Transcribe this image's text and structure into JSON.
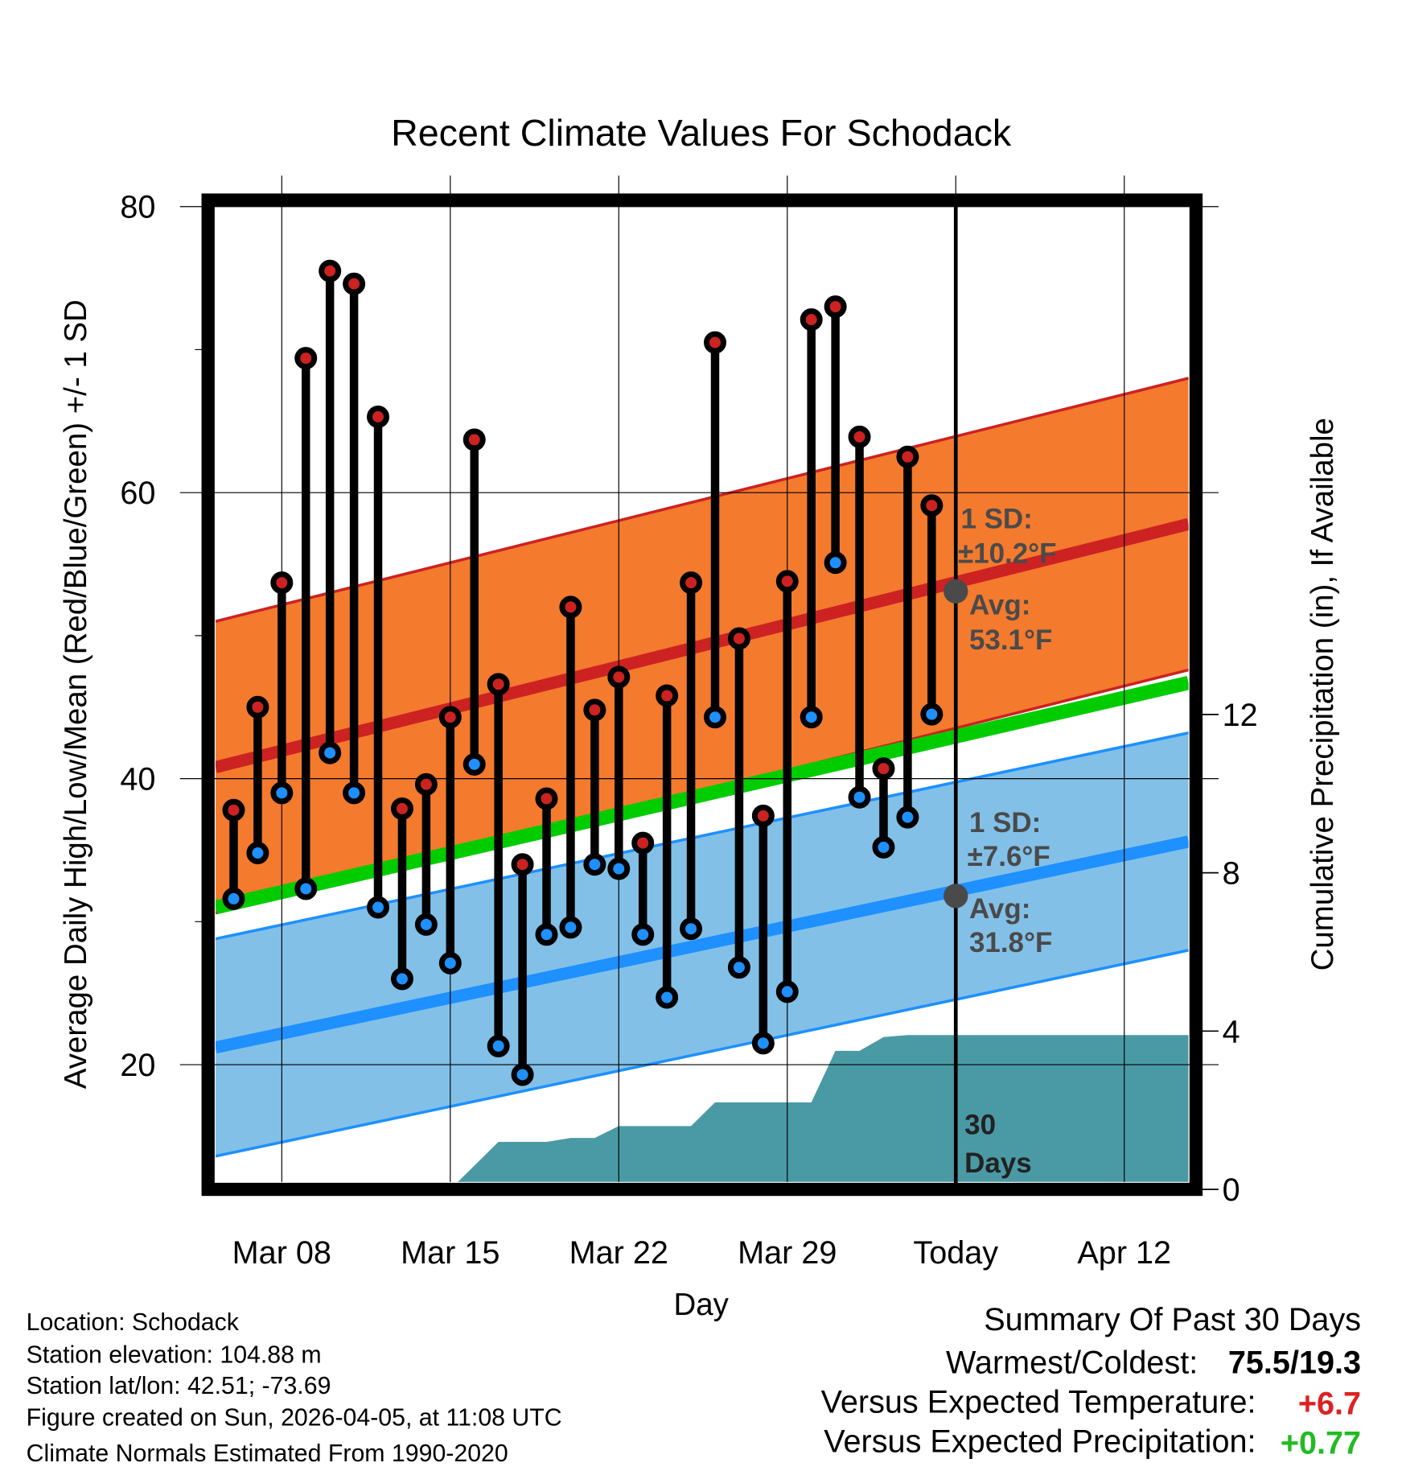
{
  "chart_data": {
    "type": "line",
    "title": "Recent Climate Values For Schodack",
    "xlabel": "Day",
    "ylabel": "Average Daily High/Low/Mean (Red/Blue/Green) +/- 1 SD",
    "y2label": "Cumulative Precipitation (in), If Available",
    "ylim": [
      11.8,
      80
    ],
    "y2lim": [
      0,
      24.4
    ],
    "xlim_days_from_mar06": [
      -0.75,
      39.67
    ],
    "y_ticks": [
      "80",
      "60",
      "40",
      "20"
    ],
    "y_tick_values": [
      80,
      60,
      40,
      20
    ],
    "y_minor_values": [
      70,
      50,
      30
    ],
    "y2_ticks": [
      "12",
      "8",
      "4",
      "0"
    ],
    "y2_tick_values": [
      12,
      8,
      4,
      0
    ],
    "x_ticks": [
      "Mar 08",
      "Mar 15",
      "Mar 22",
      "Mar 29",
      "Today",
      "Apr 12"
    ],
    "x_tick_days": [
      2,
      9,
      16,
      23,
      30,
      37
    ],
    "today_day": 30,
    "dates": [
      "Mar 06",
      "Mar 07",
      "Mar 08",
      "Mar 09",
      "Mar 10",
      "Mar 11",
      "Mar 12",
      "Mar 13",
      "Mar 14",
      "Mar 15",
      "Mar 16",
      "Mar 17",
      "Mar 18",
      "Mar 19",
      "Mar 20",
      "Mar 21",
      "Mar 22",
      "Mar 23",
      "Mar 24",
      "Mar 25",
      "Mar 26",
      "Mar 27",
      "Mar 28",
      "Mar 29",
      "Mar 30",
      "Mar 31",
      "Apr 01",
      "Apr 02",
      "Apr 03",
      "Apr 04"
    ],
    "series": [
      {
        "name": "Daily High",
        "color": "#cc2222",
        "values": [
          37.8,
          45.0,
          53.7,
          69.4,
          75.5,
          74.6,
          65.3,
          37.9,
          39.6,
          44.3,
          63.7,
          46.6,
          34.0,
          38.6,
          52.0,
          44.8,
          47.1,
          35.5,
          45.8,
          53.7,
          70.5,
          49.8,
          37.4,
          53.8,
          72.1,
          73.0,
          63.9,
          40.7,
          62.5,
          59.1
        ]
      },
      {
        "name": "Daily Low",
        "color": "#1e90ff",
        "values": [
          31.6,
          34.8,
          39.0,
          32.3,
          41.8,
          39.0,
          31.0,
          26.0,
          29.8,
          27.1,
          41.0,
          21.3,
          19.3,
          29.1,
          29.6,
          34.0,
          33.7,
          29.1,
          24.7,
          29.5,
          44.3,
          26.8,
          21.5,
          25.1,
          44.3,
          55.1,
          38.7,
          35.2,
          37.3,
          44.5
        ]
      }
    ],
    "normals": {
      "high_avg": {
        "start": 40.8,
        "end": 57.8,
        "sd": 10.2,
        "color": "#cc2222",
        "band_color": "#f47a2e"
      },
      "low_avg": {
        "start": 21.2,
        "end": 35.6,
        "sd": 7.6,
        "color": "#1e90ff",
        "band_color": "#82c0e8"
      },
      "mean": {
        "start": 31.0,
        "end": 46.7,
        "color": "#00cc00"
      }
    },
    "precip": {
      "color": "#4a9aa5",
      "days": [
        9,
        11,
        13,
        14,
        15,
        16,
        19,
        20,
        24,
        25,
        26,
        27,
        28,
        39.67
      ],
      "inches": [
        0,
        1.2,
        1.2,
        1.3,
        1.3,
        1.6,
        1.6,
        2.2,
        2.2,
        3.5,
        3.5,
        3.85,
        3.9,
        3.9
      ]
    },
    "annotations": {
      "high_sd_line1": "1 SD:",
      "high_sd_line2": "±10.2°F",
      "high_avg_line1": "Avg:",
      "high_avg_line2": "53.1°F",
      "high_avg_today": 53.1,
      "low_sd_line1": "1 SD:",
      "low_sd_line2": "±7.6°F",
      "low_avg_line1": "Avg:",
      "low_avg_line2": "31.8°F",
      "low_avg_today": 31.8,
      "days_line1": "30",
      "days_line2": "Days"
    }
  },
  "footer": {
    "location": "Location: Schodack",
    "elevation": "Station elevation: 104.88 m",
    "latlon": "Station lat/lon: 42.51; -73.69",
    "created": "Figure created on Sun, 2026-04-05, at 11:08 UTC",
    "normals": "Climate Normals Estimated From 1990-2020"
  },
  "summary": {
    "title": "Summary Of Past 30 Days",
    "warmest_label": "Warmest/Coldest:",
    "warmest_value": "75.5/19.3",
    "temp_label": "Versus Expected Temperature:",
    "temp_value": "+6.7",
    "temp_color": "#dd2222",
    "precip_label": "Versus Expected Precipitation:",
    "precip_value": "+0.77",
    "precip_color": "#22bb22"
  }
}
